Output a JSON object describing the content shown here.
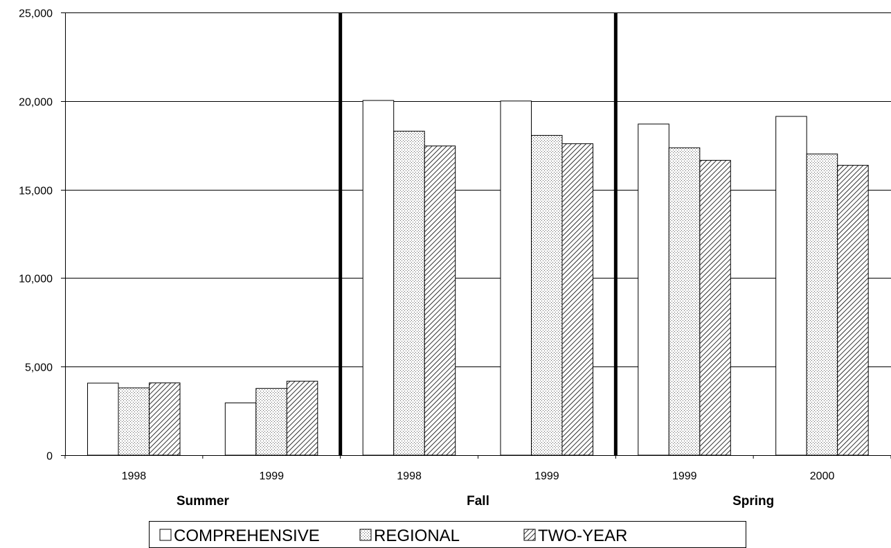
{
  "chart_data": {
    "type": "bar",
    "title": "",
    "xlabel": "",
    "ylabel": "",
    "ylim": [
      0,
      25000
    ],
    "y_ticks": [
      0,
      5000,
      10000,
      15000,
      20000,
      25000
    ],
    "y_tick_labels": [
      "0",
      "5,000",
      "10,000",
      "15,000",
      "20,000",
      "25,000"
    ],
    "grid": true,
    "legend_position": "bottom",
    "groups": [
      {
        "name": "Summer",
        "categories": [
          "1998",
          "1999"
        ]
      },
      {
        "name": "Fall",
        "categories": [
          "1998",
          "1999"
        ]
      },
      {
        "name": "Spring",
        "categories": [
          "1999",
          "2000"
        ]
      }
    ],
    "categories": [
      "1998",
      "1999",
      "1998",
      "1999",
      "1999",
      "2000"
    ],
    "series": [
      {
        "name": "COMPREHENSIVE",
        "pattern": "solid-white",
        "values": [
          4070,
          2950,
          20030,
          20000,
          18700,
          19130
        ]
      },
      {
        "name": "REGIONAL",
        "pattern": "dots",
        "values": [
          3800,
          3770,
          18300,
          18060,
          17360,
          17010
        ]
      },
      {
        "name": "TWO-YEAR",
        "pattern": "diagonal-hatch",
        "values": [
          4080,
          4180,
          17460,
          17590,
          16650,
          16370
        ]
      }
    ],
    "colors": {
      "bar_fill": "#ffffff",
      "bar_stroke": "#000000",
      "pattern_ink": "#000000",
      "gridline": "#000000",
      "separator": "#000000"
    }
  }
}
